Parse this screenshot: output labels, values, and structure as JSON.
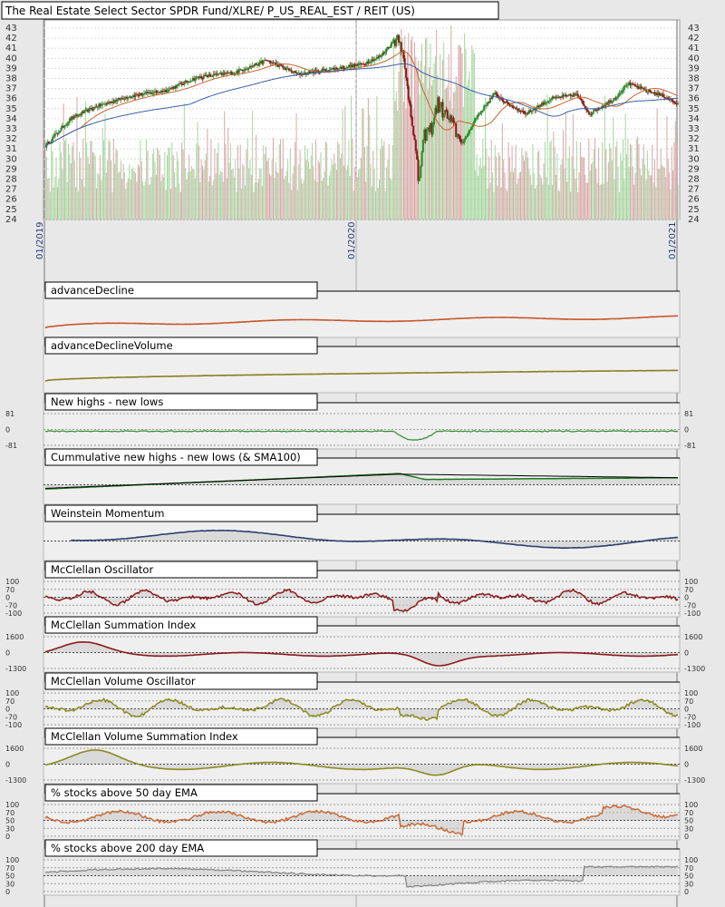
{
  "chart_data": {
    "type": "line",
    "title": "The Real Estate Select Sector SPDR Fund/XLRE/ P_US_REAL_EST / REIT (US)",
    "price_axis": {
      "ticks": [
        43,
        42,
        41,
        40,
        39,
        38,
        37,
        36,
        35,
        34,
        33,
        32,
        31,
        30,
        29,
        28,
        27,
        26,
        25,
        24
      ]
    },
    "date_labels": [
      "01/2019",
      "01/2020",
      "01/2021"
    ],
    "price_keypoints": {
      "x": [
        0,
        0.04,
        0.08,
        0.13,
        0.19,
        0.24,
        0.3,
        0.35,
        0.4,
        0.45,
        0.5,
        0.53,
        0.56,
        0.57,
        0.58,
        0.59,
        0.6,
        0.61,
        0.62,
        0.64,
        0.66,
        0.68,
        0.71,
        0.73,
        0.76,
        0.8,
        0.84,
        0.86,
        0.9,
        0.92,
        0.95,
        0.98,
        1.0
      ],
      "y": [
        31.3,
        34,
        35.2,
        36.2,
        36.8,
        38.1,
        38.6,
        39.8,
        38.4,
        38.9,
        39.4,
        40.2,
        42.4,
        38,
        34,
        27.7,
        32.5,
        33,
        35.5,
        33.8,
        31.5,
        34,
        36.5,
        35.5,
        34.5,
        36,
        36.4,
        34.5,
        36,
        37.5,
        36.8,
        36.2,
        35.4
      ]
    },
    "panels": [
      {
        "label": "advanceDecline"
      },
      {
        "label": "advanceDeclineVolume"
      },
      {
        "label": "New highs - new lows",
        "axis": [
          "81",
          "0",
          "-81"
        ]
      },
      {
        "label": "Cummulative new highs - new lows (& SMA100)"
      },
      {
        "label": "Weinstein Momentum"
      },
      {
        "label": "McClellan Oscillator",
        "axis": [
          "100",
          "70",
          "0",
          "-70",
          "-100"
        ]
      },
      {
        "label": "McClellan Summation Index",
        "axis": [
          "1600",
          "0",
          "-1300"
        ]
      },
      {
        "label": "McClellan Volume Oscillator",
        "axis": [
          "100",
          "70",
          "0",
          "-70",
          "-100"
        ]
      },
      {
        "label": "McClellan Volume Summation Index",
        "axis": [
          "1600",
          "0",
          "-1300"
        ]
      },
      {
        "label": "% stocks above 50 day EMA",
        "axis": [
          "100",
          "70",
          "50",
          "30",
          "0"
        ]
      },
      {
        "label": "% stocks above 200 day EMA",
        "axis": [
          "100",
          "70",
          "50",
          "30",
          "0"
        ]
      }
    ],
    "colors": {
      "background": "#e8e8e8",
      "plot": "#ffffff",
      "up_candle": "#2e8b2e",
      "down_candle": "#8b1a1a",
      "sma_short": "#c8642d",
      "sma_long": "#3a5fa8",
      "volume_up": "#a7d6a0",
      "volume_down": "#d8a8a8",
      "advance_decline": "#c8552a",
      "ad_volume": "#8c7d20",
      "new_highs": "#2e8b2e",
      "cum_new_highs": "#1e7a1e",
      "weinstein": "#2a3f6e",
      "mcclellan": "#8b1a1a",
      "mcclellan_volume": "#8c8a20",
      "pct50": "#c8642d",
      "pct200": "#888888"
    }
  }
}
